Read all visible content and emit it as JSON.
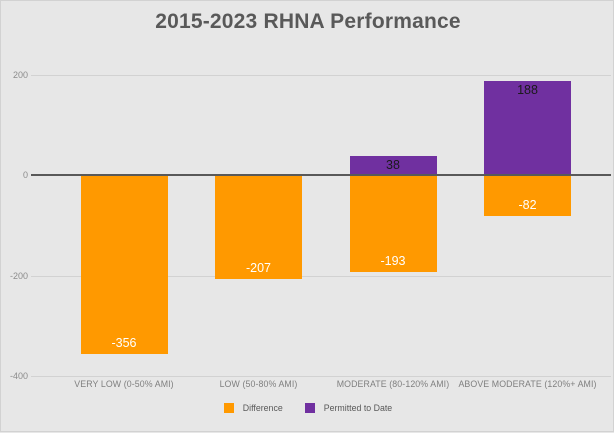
{
  "title": "2015-2023 RHNA Performance",
  "chart_data": {
    "type": "bar",
    "stacked": true,
    "title": "2015-2023 RHNA Performance",
    "categories": [
      "VERY LOW (0-50% AMI)",
      "LOW (50-80% AMI)",
      "MODERATE (80-120% AMI)",
      "ABOVE MODERATE (120%+ AMI)"
    ],
    "series": [
      {
        "name": "Difference",
        "color": "#FF9900",
        "label_color": "#ffffff",
        "values": [
          -356,
          -207,
          -193,
          -82
        ]
      },
      {
        "name": "Permitted to Date",
        "color": "#7030A0",
        "label_color": "#1a1a1a",
        "values": [
          0,
          0,
          38,
          188
        ]
      }
    ],
    "ylim": [
      -400,
      200
    ],
    "yticks": [
      200,
      0,
      -200,
      -400
    ],
    "grid": true,
    "legend_position": "bottom",
    "background_color": "#e7e7e7",
    "zero_line_color": "#595959",
    "gridline_color": "#d2d2d2"
  }
}
